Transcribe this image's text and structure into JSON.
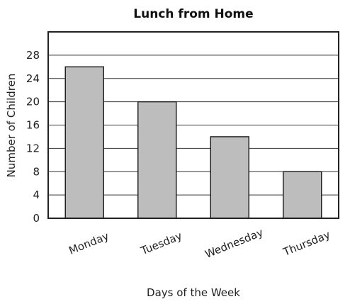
{
  "chart_data": {
    "type": "bar",
    "title": "Lunch from Home",
    "xlabel": "Days of the Week",
    "ylabel": "Number of Children",
    "categories": [
      "Monday",
      "Tuesday",
      "Wednesday",
      "Thursday"
    ],
    "values": [
      26,
      20,
      14,
      8
    ],
    "ylim": [
      0,
      32
    ],
    "yticks": [
      0,
      4,
      8,
      12,
      16,
      20,
      24,
      28
    ],
    "grid": true,
    "colors": {
      "bar": "#bdbdbd",
      "outline": "#222222"
    }
  }
}
